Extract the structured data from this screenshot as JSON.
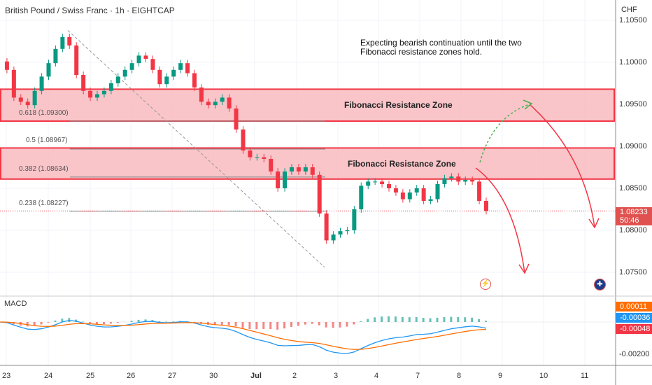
{
  "header": {
    "title": "British Pound / Swiss Franc · 1h · EIGHTCAP",
    "currency": "CHF"
  },
  "annotation": "Expecting bearish continuation until the two Fibonacci resistance zones hold.",
  "zones": [
    {
      "label": "Fibonacci Resistance Zone",
      "top": 1.0968,
      "bottom": 1.093
    },
    {
      "label": "Fibonacci Resistance Zone",
      "top": 1.0898,
      "bottom": 1.0861
    }
  ],
  "fib_levels": [
    {
      "label": "0.618 (1.09300)",
      "value": 1.093
    },
    {
      "label": "0.5 (1.08967)",
      "value": 1.08967
    },
    {
      "label": "0.382 (1.08634)",
      "value": 1.08634
    },
    {
      "label": "0.238 (1.08227)",
      "value": 1.08227
    }
  ],
  "price_axis": [
    "1.10500",
    "1.10000",
    "1.09500",
    "1.09000",
    "1.08500",
    "1.08000",
    "1.07500"
  ],
  "last_price": {
    "value": "1.08233",
    "countdown": "50:46",
    "color": "#e0524f"
  },
  "macd": {
    "label": "MACD",
    "histogram": "0.00011",
    "macd": "-0.00036",
    "signal": "-0.00048",
    "axis": "-0.00200",
    "colors": {
      "histogram": "#ff6d00",
      "macd": "#2196f3",
      "signal": "#f23645"
    }
  },
  "time_axis": [
    "23",
    "24",
    "25",
    "26",
    "27",
    "30",
    "Jul",
    "2",
    "3",
    "4",
    "7",
    "8",
    "9",
    "10",
    "11"
  ],
  "chart_data": {
    "type": "candlestick",
    "ylim": [
      1.0735,
      1.106
    ],
    "closes": [
      1.1001,
      1.0991,
      1.0958,
      1.0953,
      1.0949,
      1.0966,
      1.0983,
      1.0999,
      1.1016,
      1.103,
      1.102,
      1.0985,
      1.0966,
      1.0958,
      1.0962,
      1.0966,
      1.0975,
      1.0983,
      1.0991,
      1.0999,
      1.1008,
      1.1004,
      1.0991,
      1.0974,
      1.0983,
      1.0991,
      1.0999,
      1.0987,
      1.097,
      1.0953,
      1.0949,
      1.0953,
      1.0958,
      1.0945,
      1.092,
      1.0895,
      1.0887,
      1.0887,
      1.0885,
      1.087,
      1.085,
      1.087,
      1.0875,
      1.087,
      1.0875,
      1.0866,
      1.082,
      1.0788,
      1.0795,
      1.0799,
      1.08,
      1.0825,
      1.0853,
      1.0858,
      1.0858,
      1.0855,
      1.085,
      1.0845,
      1.0837,
      1.0845,
      1.085,
      1.0835,
      1.0837,
      1.0855,
      1.0862,
      1.0864,
      1.0858,
      1.086,
      1.0858,
      1.0835,
      1.0823
    ],
    "swing_high": 1.1038,
    "swing_low": 1.0756,
    "colors": {
      "up": "#089981",
      "down": "#f23645",
      "zone": "#f8bbc0",
      "zone_border": "#f23645",
      "projection": "#4caf50"
    }
  }
}
